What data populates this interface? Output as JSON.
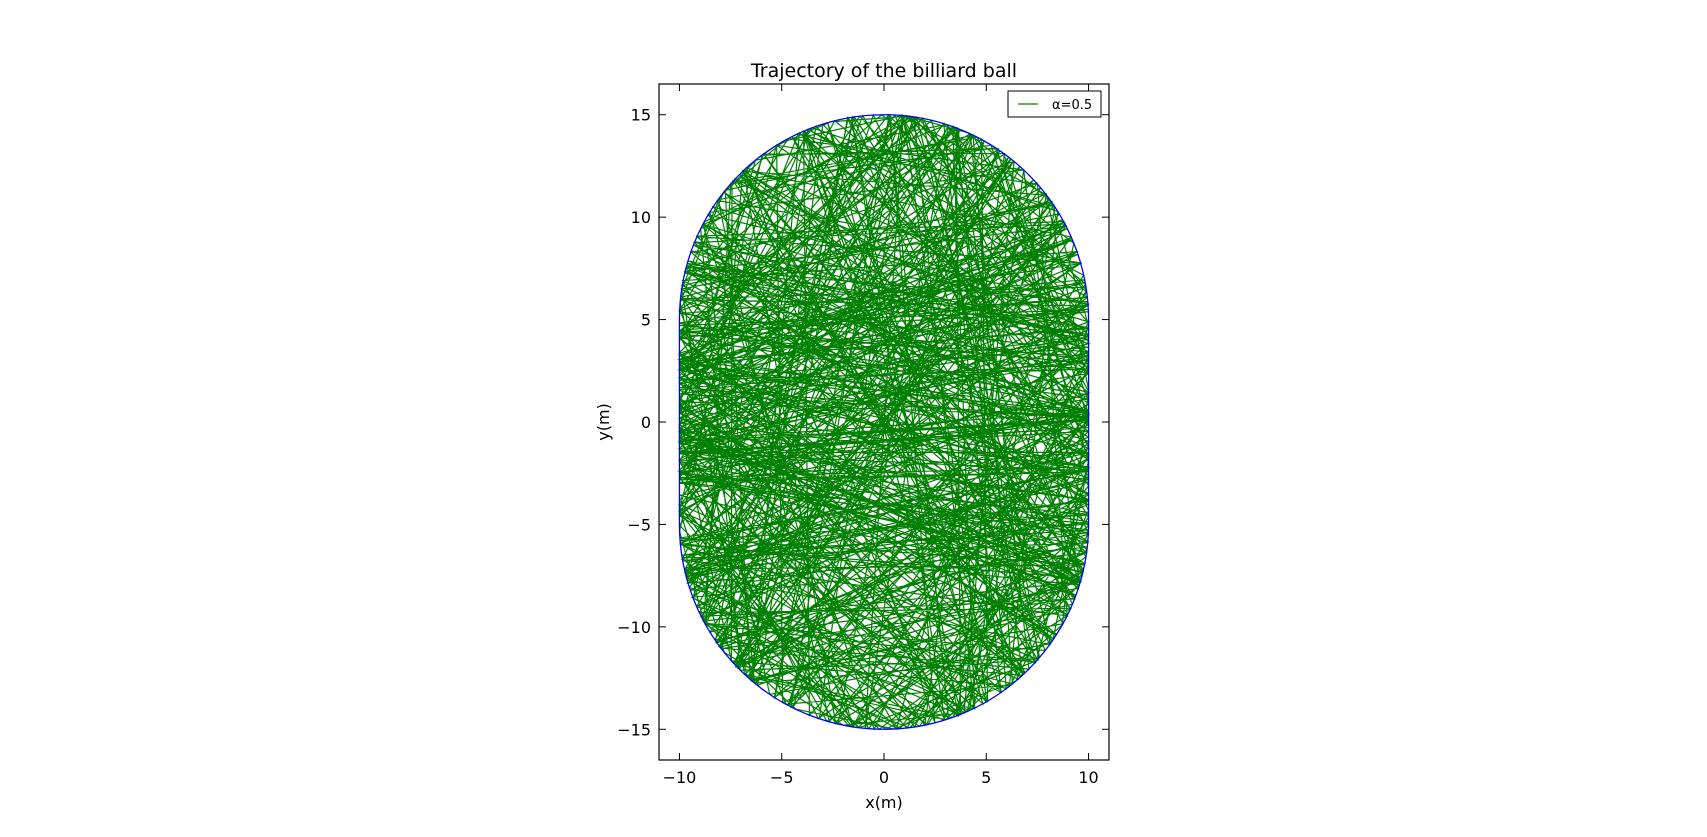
{
  "chart_data": {
    "type": "line",
    "title": "Trajectory of the billiard ball",
    "xlabel": "x(m)",
    "ylabel": "y(m)",
    "xlim": [
      -11,
      11
    ],
    "ylim": [
      -16.5,
      16.5
    ],
    "xticks": [
      -10,
      -5,
      0,
      5,
      10
    ],
    "yticks": [
      -15,
      -10,
      -5,
      0,
      5,
      10,
      15
    ],
    "xtick_labels": [
      "−10",
      "−5",
      "0",
      "5",
      "10"
    ],
    "ytick_labels": [
      "−15",
      "−10",
      "−5",
      "0",
      "5",
      "10",
      "15"
    ],
    "grid": false,
    "legend_position": "top-right",
    "boundary": {
      "shape": "stadium",
      "half_width": 10,
      "straight_half_length": 5,
      "cap_radius": 10,
      "color": "#0000ff"
    },
    "series": [
      {
        "name": "α=0.5",
        "color": "#008000",
        "alpha": 0.5,
        "reflections": 600
      }
    ]
  }
}
